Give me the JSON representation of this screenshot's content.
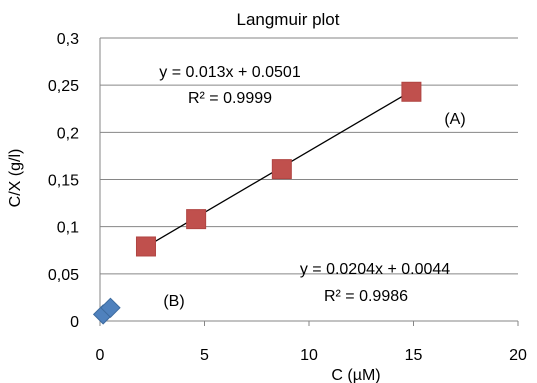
{
  "chart_data": {
    "type": "scatter",
    "title": "Langmuir plot",
    "xlabel": "C (µM)",
    "ylabel": "C/X (g/l)",
    "xlim": [
      0,
      20
    ],
    "ylim": [
      0,
      0.3
    ],
    "x_ticks": [
      "0",
      "5",
      "10",
      "15",
      "20"
    ],
    "y_ticks": [
      "0",
      "0,05",
      "0,1",
      "0,15",
      "0,2",
      "0,25",
      "0,3"
    ],
    "grid": "horizontal",
    "colors": {
      "A": "#c0504d",
      "B": "#4f81bd",
      "trend": "#000000",
      "grid": "#868686"
    },
    "series": [
      {
        "label": "(A)",
        "marker": "square",
        "x": [
          2.2,
          4.6,
          8.7,
          14.9
        ],
        "y": [
          0.079,
          0.108,
          0.161,
          0.243
        ],
        "trend": {
          "equation": "y = 0.013x + 0.0501",
          "r2": "R² = 0.9999",
          "x_range": [
            2.2,
            14.9
          ],
          "slope": 0.013,
          "intercept": 0.0501
        }
      },
      {
        "label": "(B)",
        "marker": "diamond",
        "x": [
          0.15,
          0.5
        ],
        "y": [
          0.007,
          0.014
        ],
        "trend": {
          "equation": "y = 0.0204x + 0.0044",
          "r2": "R² = 0.9986",
          "x_range": [
            0.05,
            0.5
          ],
          "slope": 0.0204,
          "intercept": 0.0044
        }
      }
    ]
  }
}
